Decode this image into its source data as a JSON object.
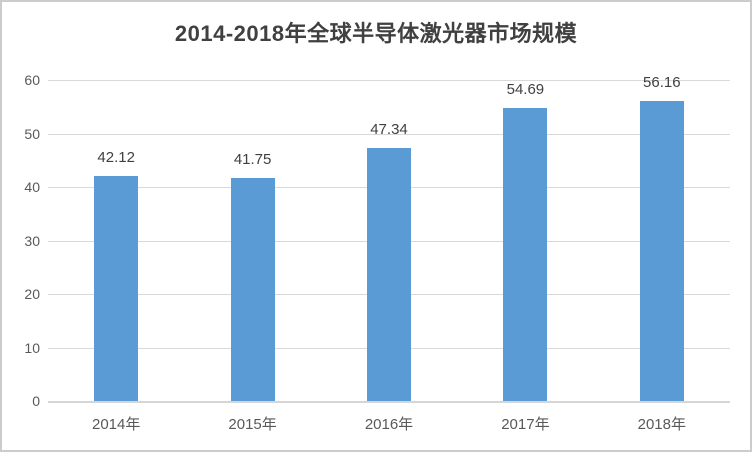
{
  "chart_data": {
    "type": "bar",
    "title": "2014-2018年全球半导体激光器市场规模",
    "categories": [
      "2014年",
      "2015年",
      "2016年",
      "2017年",
      "2018年"
    ],
    "values": [
      42.12,
      41.75,
      47.34,
      54.69,
      56.16
    ],
    "data_labels": [
      "42.12",
      "41.75",
      "47.34",
      "54.69",
      "56.16"
    ],
    "xlabel": "",
    "ylabel": "",
    "y_ticks": [
      0,
      10,
      20,
      30,
      40,
      50,
      60
    ],
    "ylim": [
      0,
      60
    ],
    "grid": true,
    "legend": "none",
    "colors": {
      "bar": "#5b9bd5",
      "gridline": "#d9d9d9",
      "axis_line": "#d6d6d6",
      "title_text": "#404040",
      "tick_text": "#595959",
      "data_label_text": "#404040",
      "background": "#ffffff",
      "frame_border": "#cccccc"
    }
  }
}
